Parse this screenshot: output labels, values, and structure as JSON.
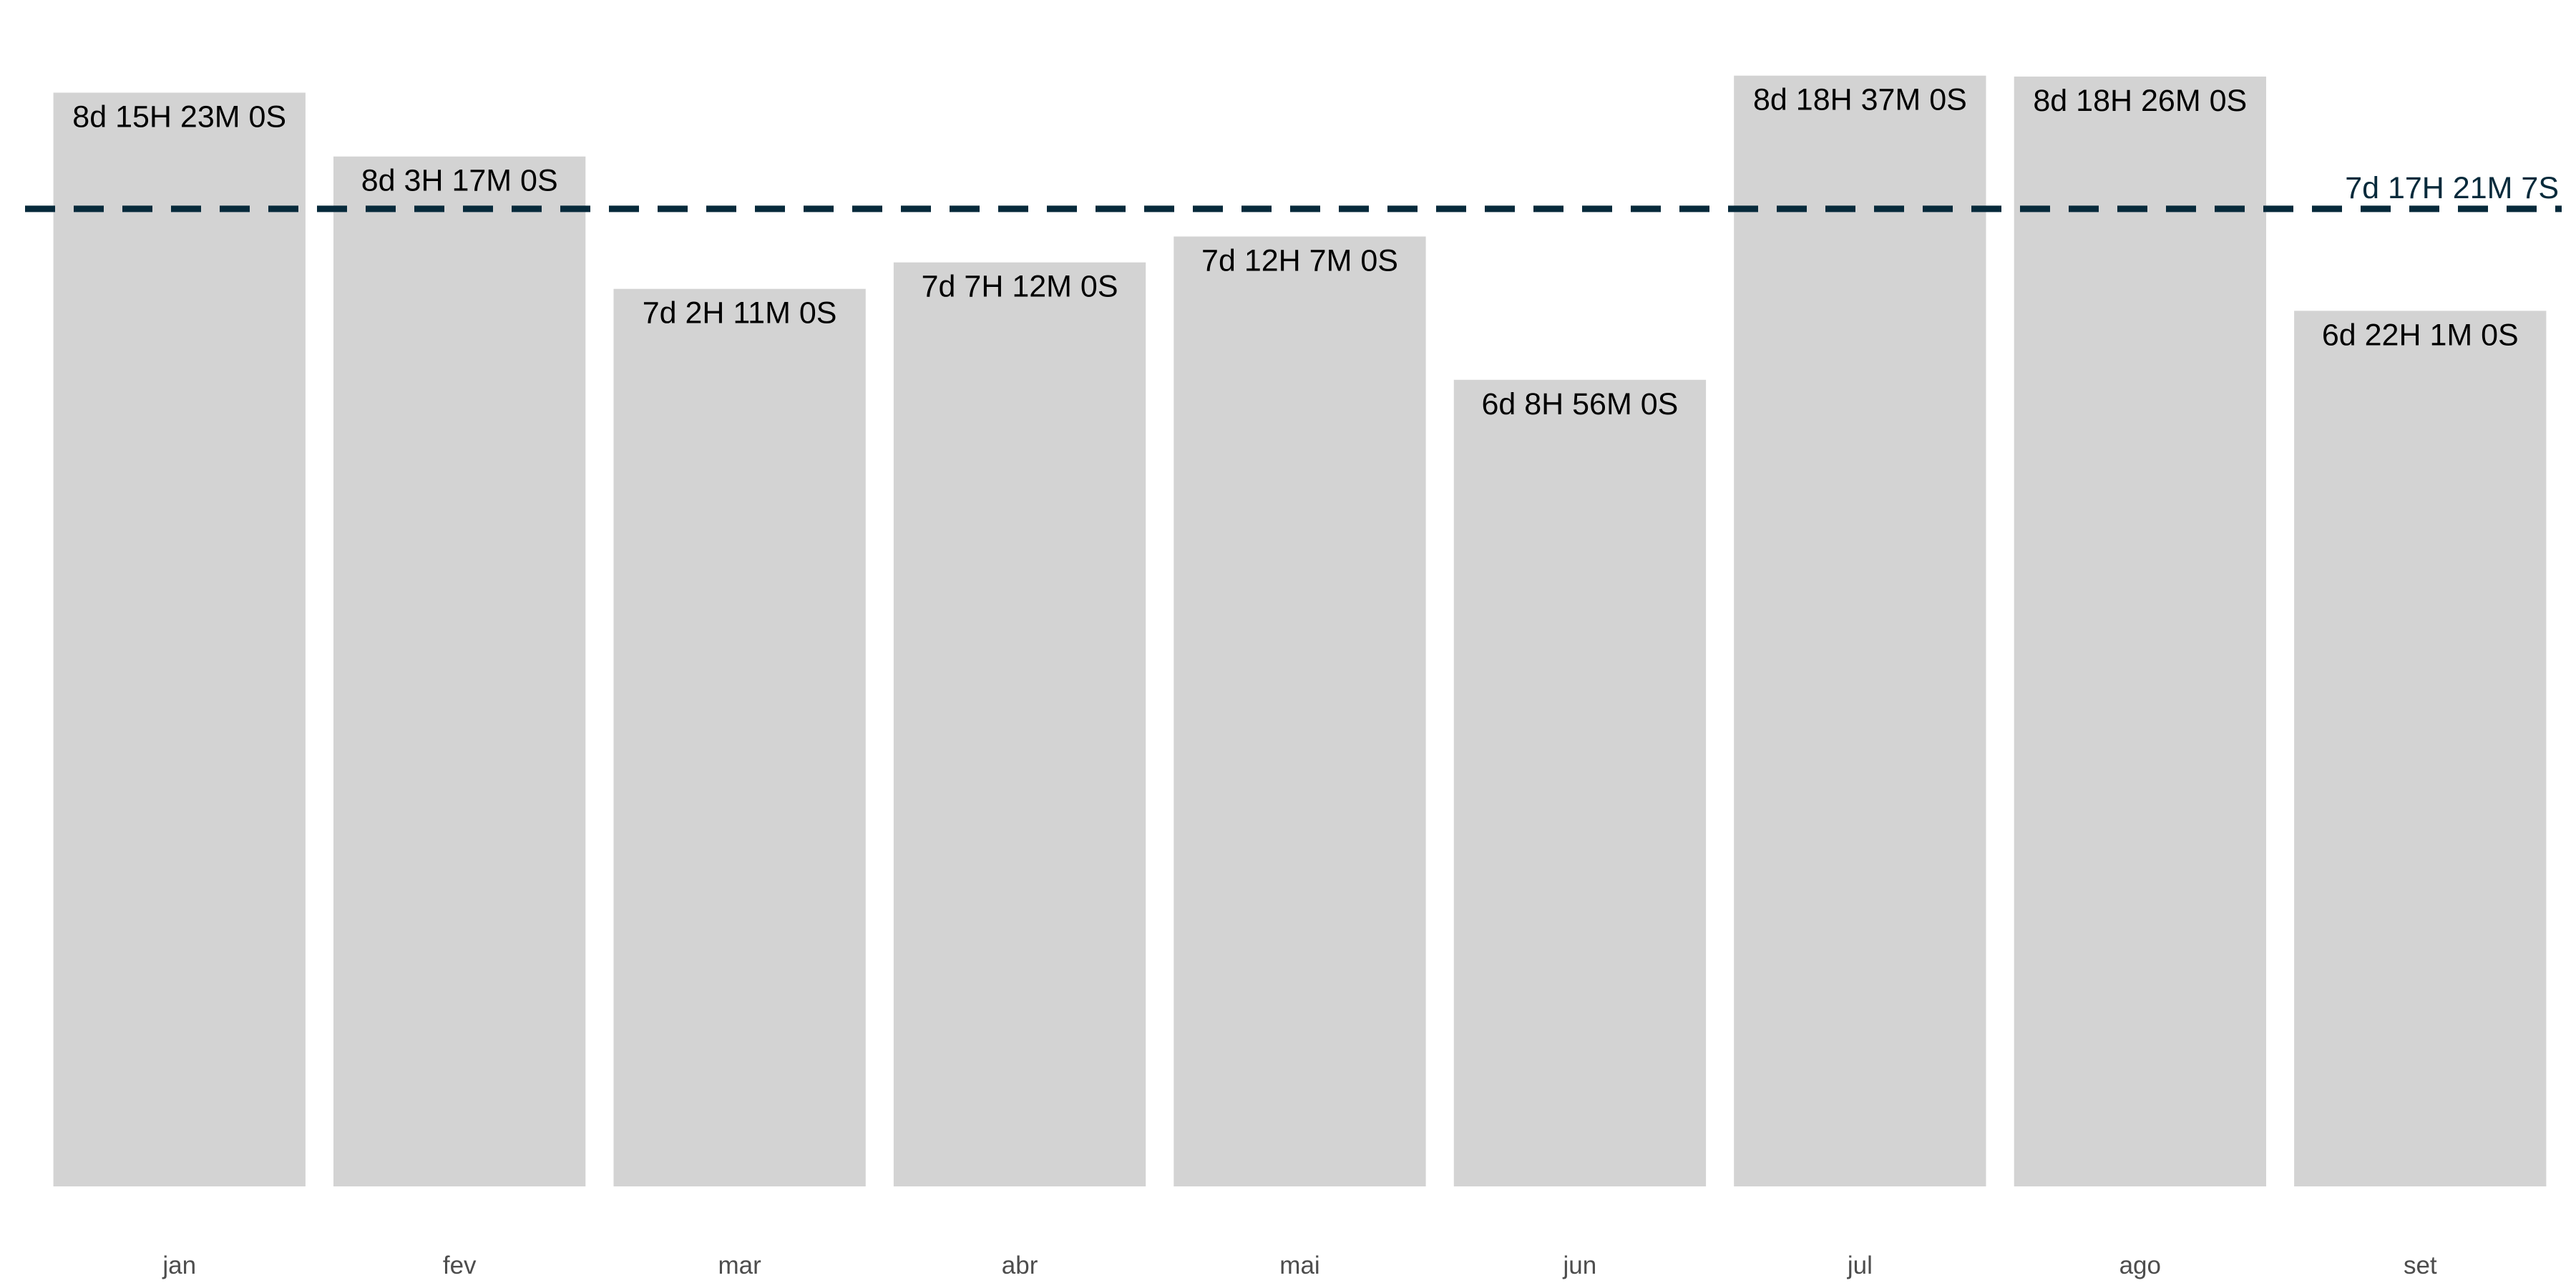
{
  "chart_data": {
    "type": "bar",
    "categories": [
      "jan",
      "fev",
      "mar",
      "abr",
      "mai",
      "jun",
      "jul",
      "ago",
      "set"
    ],
    "values_days": [
      8.6413,
      8.137,
      7.091,
      7.3,
      7.5049,
      6.3722,
      8.7754,
      8.7681,
      6.9174
    ],
    "value_labels": [
      "8d 15H 23M 0S",
      "8d 3H 17M 0S",
      "7d 2H 11M 0S",
      "7d 7H 12M 0S",
      "7d 12H 7M 0S",
      "6d 8H 56M 0S",
      "8d 18H 37M 0S",
      "8d 18H 26M 0S",
      "6d 22H 1M 0S"
    ],
    "reference_line": {
      "value_days": 7.723,
      "label": "7d 17H 21M 7S",
      "style": "dashed"
    },
    "ylim": [
      0,
      9.0
    ],
    "title": "",
    "xlabel": "",
    "ylabel": "",
    "grid": false,
    "colors": {
      "bar": "#d3d3d3",
      "reference_line": "#072a3b",
      "bar_label": "#000000",
      "tick_label": "#4d4d4d"
    }
  }
}
